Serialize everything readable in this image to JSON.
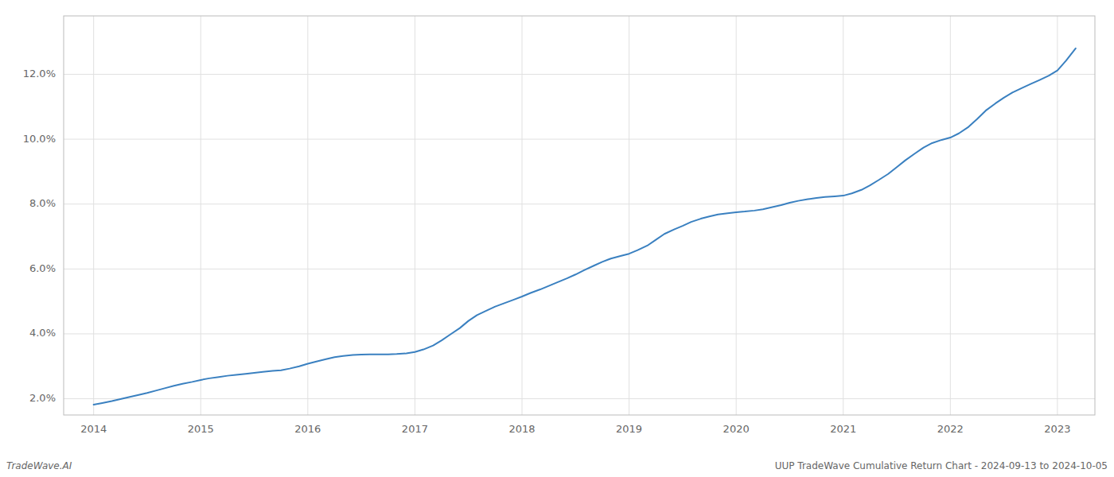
{
  "chart_data": {
    "type": "line",
    "x": [
      2014.0,
      2014.08,
      2014.17,
      2014.25,
      2014.33,
      2014.42,
      2014.5,
      2014.58,
      2014.67,
      2014.75,
      2014.83,
      2014.92,
      2015.0,
      2015.08,
      2015.17,
      2015.25,
      2015.33,
      2015.42,
      2015.5,
      2015.58,
      2015.67,
      2015.75,
      2015.83,
      2015.92,
      2016.0,
      2016.08,
      2016.17,
      2016.25,
      2016.33,
      2016.42,
      2016.5,
      2016.58,
      2016.67,
      2016.75,
      2016.83,
      2016.92,
      2017.0,
      2017.08,
      2017.17,
      2017.25,
      2017.33,
      2017.42,
      2017.5,
      2017.58,
      2017.67,
      2017.75,
      2017.83,
      2017.92,
      2018.0,
      2018.08,
      2018.17,
      2018.25,
      2018.33,
      2018.42,
      2018.5,
      2018.58,
      2018.67,
      2018.75,
      2018.83,
      2018.92,
      2019.0,
      2019.08,
      2019.17,
      2019.25,
      2019.33,
      2019.42,
      2019.5,
      2019.58,
      2019.67,
      2019.75,
      2019.83,
      2019.92,
      2020.0,
      2020.08,
      2020.17,
      2020.25,
      2020.33,
      2020.42,
      2020.5,
      2020.58,
      2020.67,
      2020.75,
      2020.83,
      2020.92,
      2021.0,
      2021.08,
      2021.17,
      2021.25,
      2021.33,
      2021.42,
      2021.5,
      2021.58,
      2021.67,
      2021.75,
      2021.83,
      2021.92,
      2022.0,
      2022.08,
      2022.17,
      2022.25,
      2022.33,
      2022.42,
      2022.5,
      2022.58,
      2022.67,
      2022.75,
      2022.83,
      2022.92,
      2023.0,
      2023.08,
      2023.17
    ],
    "values": [
      1.82,
      1.87,
      1.93,
      1.99,
      2.05,
      2.12,
      2.18,
      2.25,
      2.33,
      2.4,
      2.46,
      2.52,
      2.58,
      2.63,
      2.67,
      2.71,
      2.74,
      2.77,
      2.8,
      2.83,
      2.86,
      2.88,
      2.93,
      3.0,
      3.08,
      3.15,
      3.22,
      3.28,
      3.32,
      3.35,
      3.36,
      3.37,
      3.37,
      3.37,
      3.38,
      3.4,
      3.44,
      3.52,
      3.64,
      3.8,
      3.98,
      4.18,
      4.4,
      4.58,
      4.72,
      4.84,
      4.94,
      5.05,
      5.15,
      5.26,
      5.37,
      5.48,
      5.59,
      5.71,
      5.83,
      5.96,
      6.1,
      6.22,
      6.32,
      6.4,
      6.47,
      6.58,
      6.72,
      6.9,
      7.08,
      7.22,
      7.33,
      7.45,
      7.55,
      7.62,
      7.68,
      7.72,
      7.75,
      7.77,
      7.8,
      7.84,
      7.9,
      7.97,
      8.04,
      8.1,
      8.15,
      8.19,
      8.22,
      8.24,
      8.26,
      8.33,
      8.44,
      8.58,
      8.74,
      8.93,
      9.14,
      9.35,
      9.56,
      9.74,
      9.88,
      9.98,
      10.05,
      10.18,
      10.38,
      10.62,
      10.88,
      11.1,
      11.28,
      11.44,
      11.58,
      11.7,
      11.82,
      11.96,
      12.12,
      12.42,
      12.8
    ],
    "color": "#3a80c0",
    "xlim": [
      2013.72,
      2023.35
    ],
    "xticks": [
      2014,
      2015,
      2016,
      2017,
      2018,
      2019,
      2020,
      2021,
      2022,
      2023
    ],
    "ylim": [
      1.5,
      13.8
    ],
    "yticks": [
      {
        "value": 2.0,
        "label": "2.0%"
      },
      {
        "value": 4.0,
        "label": "4.0%"
      },
      {
        "value": 6.0,
        "label": "6.0%"
      },
      {
        "value": 8.0,
        "label": "8.0%"
      },
      {
        "value": 10.0,
        "label": "10.0%"
      },
      {
        "value": 12.0,
        "label": "12.0%"
      }
    ],
    "grid": true,
    "annotations": [
      "TradeWave.AI",
      "UUP TradeWave Cumulative Return Chart - 2024-09-13 to 2024-10-05"
    ]
  }
}
